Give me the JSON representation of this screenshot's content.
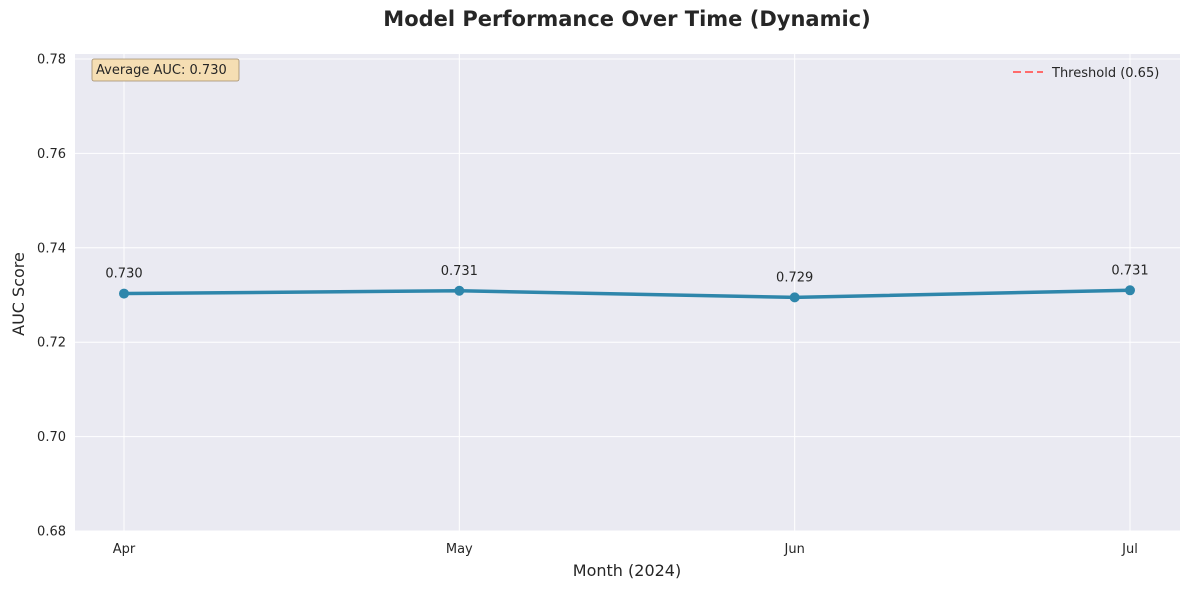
{
  "chart_data": {
    "type": "line",
    "title": "Model Performance Over Time (Dynamic)",
    "xlabel": "Month (2024)",
    "ylabel": "AUC Score",
    "categories": [
      "Apr",
      "May",
      "Jun",
      "Jul"
    ],
    "series": [
      {
        "values": [
          0.7303,
          0.7309,
          0.7295,
          0.731
        ],
        "labels": [
          "0.730",
          "0.731",
          "0.729",
          "0.731"
        ],
        "color": "#2e86ab"
      }
    ],
    "ylim": [
      0.68,
      0.78
    ],
    "yticks": [
      0.68,
      0.7,
      0.72,
      0.74,
      0.76,
      0.78
    ],
    "ytick_labels": [
      "0.68",
      "0.70",
      "0.72",
      "0.74",
      "0.76",
      "0.78"
    ],
    "threshold": {
      "value": 0.65,
      "label": "Threshold (0.65)",
      "color": "#ff6b6b",
      "style": "dashed"
    },
    "annotation": {
      "text": "Average AUC: 0.730",
      "placement": "top-left",
      "background": "#f5deb3"
    },
    "legend_placement": "top-right",
    "grid": true,
    "background": "#eaeaf2"
  }
}
